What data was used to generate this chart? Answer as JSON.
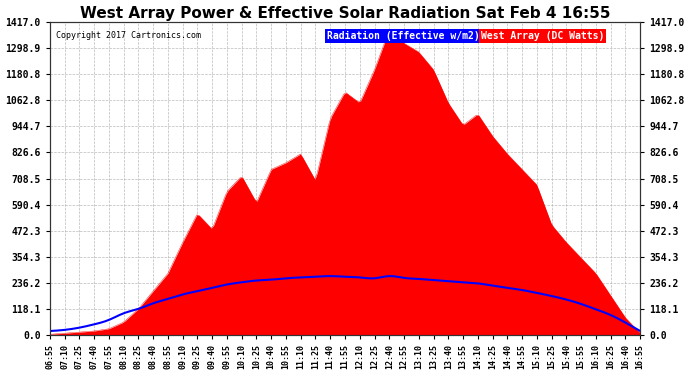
{
  "title": "West Array Power & Effective Solar Radiation Sat Feb 4 16:55",
  "copyright": "Copyright 2017 Cartronics.com",
  "legend_radiation": "Radiation (Effective w/m2)",
  "legend_west": "West Array (DC Watts)",
  "y_ticks": [
    0.0,
    118.1,
    236.2,
    354.3,
    472.3,
    590.4,
    708.5,
    826.6,
    944.7,
    1062.8,
    1180.8,
    1298.9,
    1417.0
  ],
  "y_max": 1417.0,
  "y_min": 0.0,
  "bg_color": "#ffffff",
  "plot_bg_color": "#ffffff",
  "grid_color": "#aaaaaa",
  "radiation_color": "#0000ff",
  "west_color": "#ff0000",
  "west_fill_color": "#ff0000",
  "x_labels": [
    "06:55",
    "07:10",
    "07:25",
    "07:40",
    "07:55",
    "08:10",
    "08:25",
    "08:40",
    "08:55",
    "09:10",
    "09:25",
    "09:40",
    "09:55",
    "10:10",
    "10:25",
    "10:40",
    "10:55",
    "11:10",
    "11:25",
    "11:40",
    "11:55",
    "12:10",
    "12:25",
    "12:40",
    "12:55",
    "13:10",
    "13:25",
    "13:40",
    "13:55",
    "14:10",
    "14:25",
    "14:40",
    "14:55",
    "15:10",
    "15:25",
    "15:40",
    "15:55",
    "16:10",
    "16:25",
    "16:40",
    "16:55"
  ],
  "west_power": [
    5,
    10,
    15,
    20,
    30,
    60,
    120,
    200,
    280,
    420,
    550,
    480,
    650,
    720,
    600,
    750,
    780,
    820,
    700,
    980,
    1100,
    1050,
    1200,
    1380,
    1320,
    1280,
    1200,
    1050,
    950,
    1000,
    900,
    820,
    750,
    680,
    500,
    420,
    350,
    280,
    180,
    80,
    10
  ],
  "radiation": [
    20,
    25,
    35,
    50,
    70,
    100,
    120,
    145,
    165,
    185,
    200,
    215,
    230,
    240,
    248,
    252,
    258,
    262,
    265,
    268,
    265,
    262,
    258,
    268,
    260,
    255,
    250,
    245,
    240,
    235,
    225,
    215,
    205,
    192,
    178,
    162,
    142,
    118,
    92,
    58,
    20
  ]
}
